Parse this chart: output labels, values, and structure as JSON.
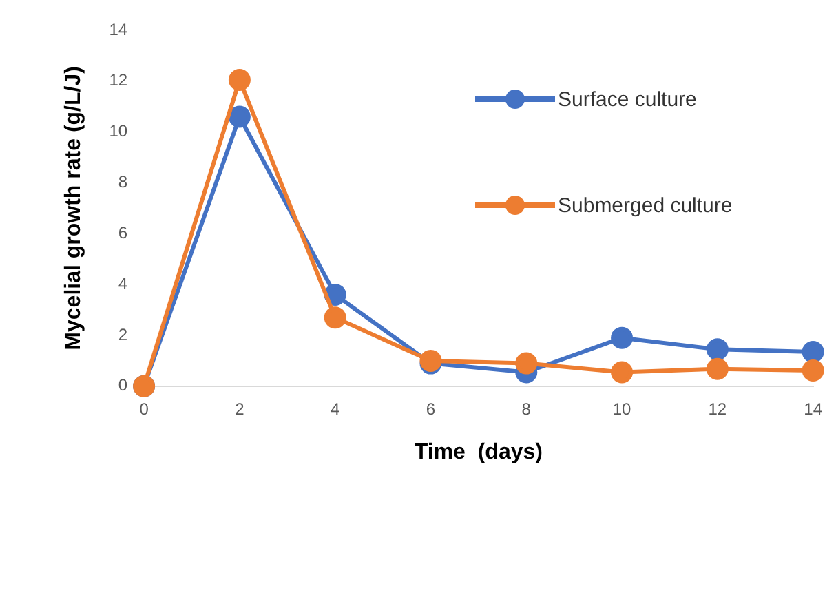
{
  "chart_data": {
    "type": "line",
    "xlabel": "Time  (days)",
    "ylabel": "Mycelial growth rate (g/L/J)",
    "x": [
      0,
      2,
      4,
      6,
      8,
      10,
      12,
      14
    ],
    "xlim": [
      0,
      14
    ],
    "xticks": [
      0,
      2,
      4,
      6,
      8,
      10,
      12,
      14
    ],
    "ylim": [
      0,
      14
    ],
    "yticks": [
      0,
      2,
      4,
      6,
      8,
      10,
      12,
      14
    ],
    "grid": false,
    "legend": "top right",
    "marker": "circle",
    "line_style": "solid",
    "series": [
      {
        "name": "Surface culture",
        "color": "#4472c4",
        "values": [
          0,
          10.6,
          3.6,
          0.9,
          0.55,
          1.9,
          1.45,
          1.35
        ]
      },
      {
        "name": "Submerged culture",
        "color": "#ed7d31",
        "values": [
          0,
          12.05,
          2.7,
          1.0,
          0.9,
          0.55,
          0.68,
          0.62
        ]
      }
    ]
  }
}
